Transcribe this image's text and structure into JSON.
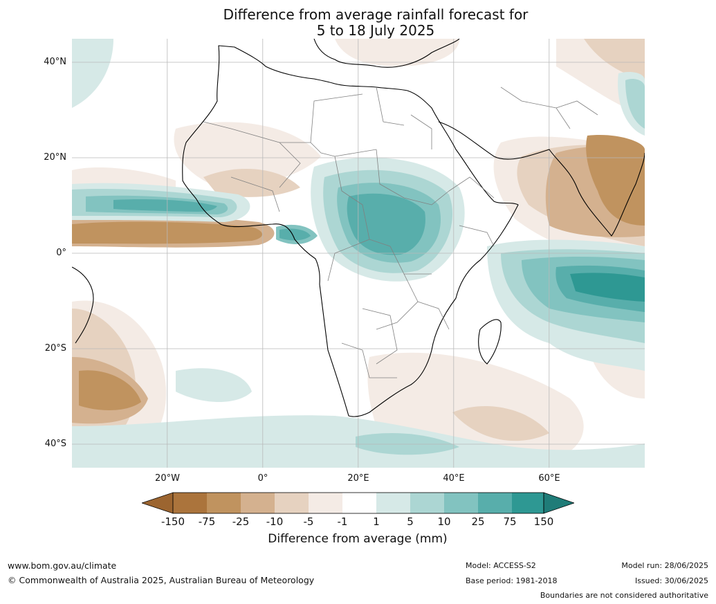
{
  "title_line1": "Difference from average rainfall forecast for",
  "title_line2": "5 to 18 July 2025",
  "longitude_labels": [
    "20°W",
    "0°",
    "20°E",
    "40°E",
    "60°E"
  ],
  "latitude_labels": [
    "40°N",
    "20°N",
    "0°",
    "20°S",
    "40°S"
  ],
  "colorbar": {
    "label": "Difference from average (mm)",
    "ticks": [
      "-150",
      "-75",
      "-25",
      "-10",
      "-5",
      "-1",
      "1",
      "5",
      "10",
      "25",
      "75",
      "150"
    ],
    "colors": [
      "#9c6530",
      "#ab743c",
      "#c0935f",
      "#d4b18f",
      "#e6d2c0",
      "#f4ebe5",
      "#ffffff",
      "#d6e9e7",
      "#acd6d3",
      "#82c3c0",
      "#58aeab",
      "#2e9893",
      "#1f7c78"
    ]
  },
  "footer": {
    "website": "www.bom.gov.au/climate",
    "copyright": "© Commonwealth of Australia 2025, Australian Bureau of Meteorology",
    "model": "Model: ACCESS-S2",
    "base_period": "Base period: 1981-2018",
    "model_run": "Model run: 28/06/2025",
    "issued": "Issued: 30/06/2025",
    "disclaimer": "Boundaries are not considered authoritative"
  }
}
